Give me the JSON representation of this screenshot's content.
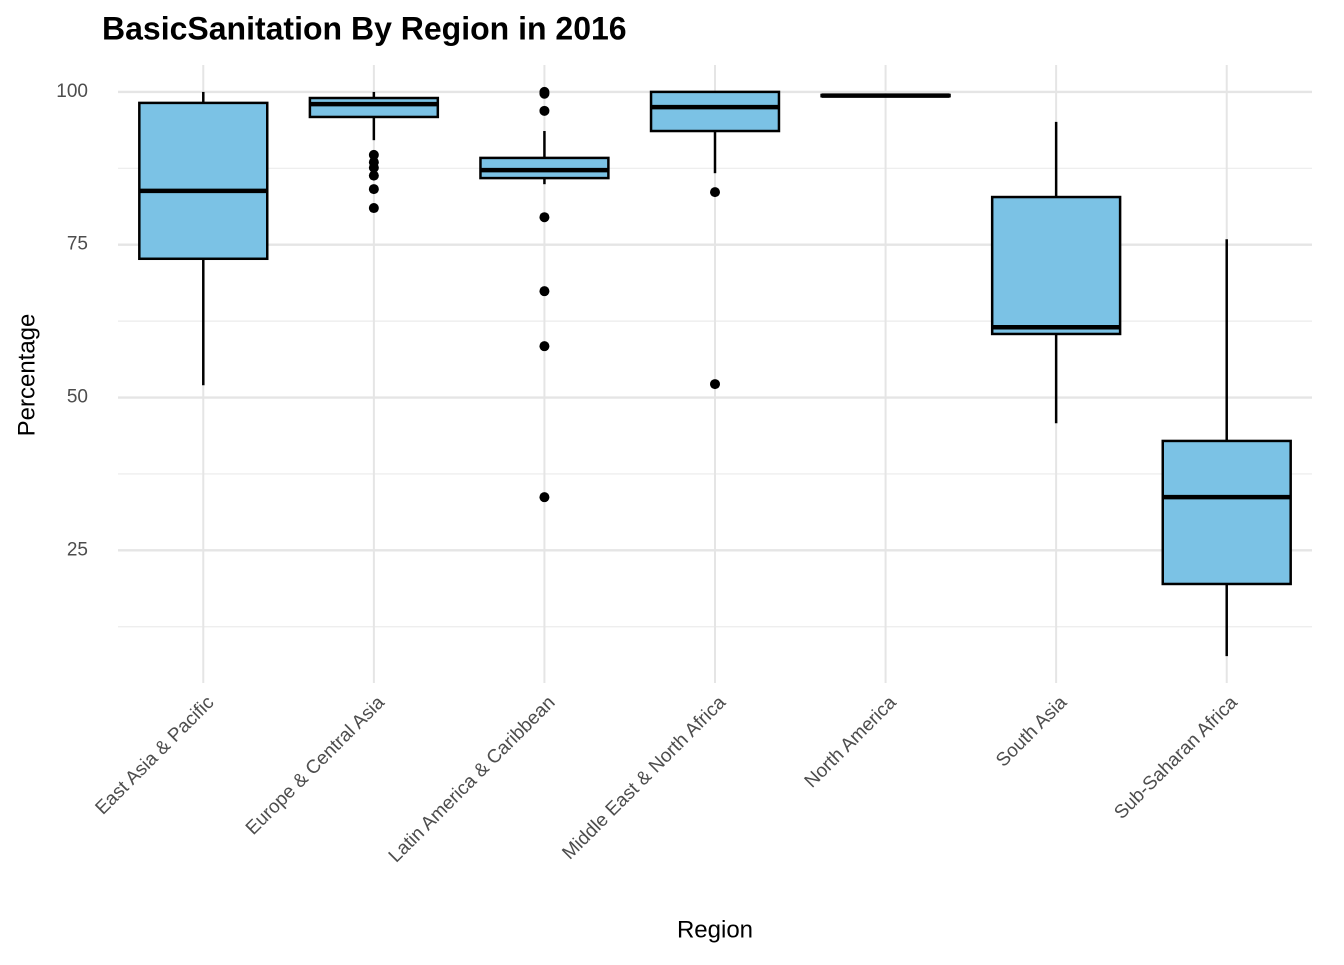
{
  "chart_data": {
    "type": "box",
    "title": "BasicSanitation By Region in 2016",
    "x_label": "Region",
    "y_label": "Percentage",
    "categories": [
      "East Asia & Pacific",
      "Europe & Central Asia",
      "Latin America & Caribbean",
      "Middle East & North Africa",
      "North America",
      "South Asia",
      "Sub-Saharan Africa"
    ],
    "whisker_low": [
      52.0,
      92.1,
      84.9,
      86.7,
      99.3,
      45.8,
      7.7
    ],
    "q1": [
      72.7,
      95.9,
      85.9,
      93.6,
      99.3,
      60.4,
      19.5
    ],
    "median": [
      83.8,
      98.0,
      87.2,
      97.5,
      99.4,
      61.5,
      33.7
    ],
    "q3": [
      98.2,
      99.0,
      89.2,
      100,
      99.5,
      82.8,
      42.9
    ],
    "whisker_high": [
      100,
      100,
      93.6,
      100,
      99.5,
      95.1,
      75.9
    ],
    "outliers": [
      [],
      [
        89.7,
        88.5,
        87.6,
        86.3,
        84.1,
        81.0
      ],
      [
        100,
        99.7,
        96.9,
        79.5,
        67.4,
        58.4,
        33.7
      ],
      [
        83.6,
        52.2
      ],
      [],
      [],
      []
    ],
    "color": "#7bc2e5",
    "ylim": [
      3.3,
      104.4
    ],
    "yticks": [
      25,
      50,
      75,
      100
    ],
    "y_minor_grid": [
      12.5,
      37.5,
      62.5,
      87.5
    ],
    "grid": true
  }
}
